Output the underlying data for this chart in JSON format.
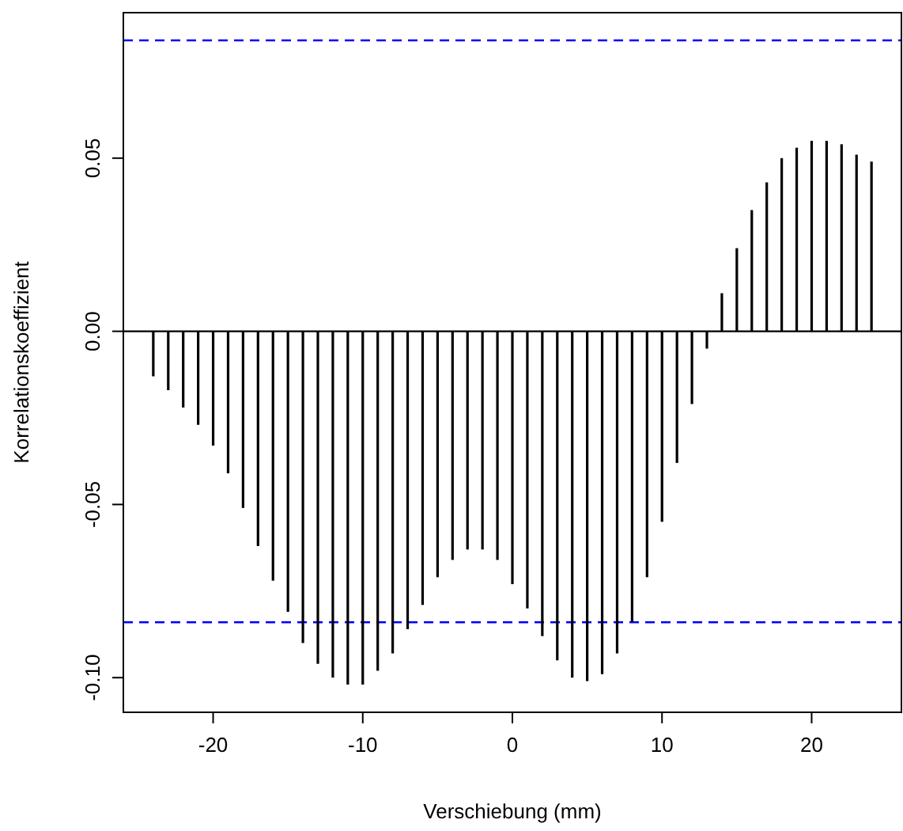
{
  "chart_data": {
    "type": "bar",
    "xlabel": "Verschiebung (mm)",
    "ylabel": "Korrelationskoeffizient",
    "x": [
      -24,
      -23,
      -22,
      -21,
      -20,
      -19,
      -18,
      -17,
      -16,
      -15,
      -14,
      -13,
      -12,
      -11,
      -10,
      -9,
      -8,
      -7,
      -6,
      -5,
      -4,
      -3,
      -2,
      -1,
      0,
      1,
      2,
      3,
      4,
      5,
      6,
      7,
      8,
      9,
      10,
      11,
      12,
      13,
      14,
      15,
      16,
      17,
      18,
      19,
      20,
      21,
      22,
      23,
      24
    ],
    "values": [
      -0.013,
      -0.017,
      -0.022,
      -0.027,
      -0.033,
      -0.041,
      -0.051,
      -0.062,
      -0.072,
      -0.081,
      -0.09,
      -0.096,
      -0.1,
      -0.102,
      -0.102,
      -0.098,
      -0.093,
      -0.086,
      -0.079,
      -0.071,
      -0.066,
      -0.063,
      -0.063,
      -0.066,
      -0.073,
      -0.08,
      -0.088,
      -0.095,
      -0.1,
      -0.101,
      -0.099,
      -0.093,
      -0.084,
      -0.071,
      -0.055,
      -0.038,
      -0.021,
      -0.005,
      0.011,
      0.024,
      0.035,
      0.043,
      0.05,
      0.053,
      0.055,
      0.055,
      0.054,
      0.051,
      0.049
    ],
    "color": "#000000",
    "xlim": [
      -26,
      26
    ],
    "xticks": [
      -20,
      -10,
      0,
      10,
      20
    ],
    "ylim": [
      -0.11,
      0.092
    ],
    "yticks": [
      {
        "value": -0.1,
        "label": "-0.10"
      },
      -0.05,
      {
        "value": 0,
        "label": "0.00"
      },
      0.05
    ],
    "ref_lines": [
      {
        "axis": "y",
        "value": 0,
        "color": "#000000",
        "line_style": "solid"
      },
      {
        "axis": "y",
        "value": 0.084,
        "color": "#0000ff",
        "line_style": "dashed"
      },
      {
        "axis": "y",
        "value": -0.084,
        "color": "#0000ff",
        "line_style": "dashed"
      }
    ],
    "grid": false
  }
}
